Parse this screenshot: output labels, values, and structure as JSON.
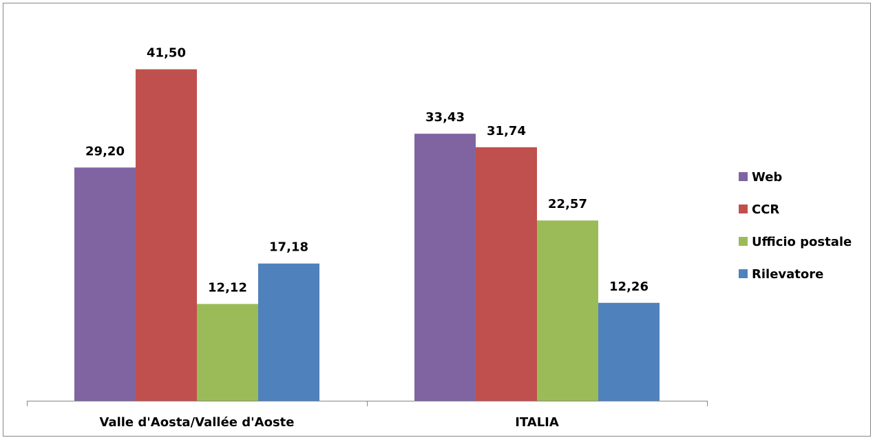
{
  "chart_data": {
    "type": "bar",
    "title": "",
    "xlabel": "",
    "ylabel": "",
    "categories": [
      "Valle d'Aosta/Vallée d'Aoste",
      "ITALIA"
    ],
    "series": [
      {
        "name": "Web",
        "values": [
          29.2,
          33.43
        ],
        "labels": [
          "29,20",
          "33,43"
        ],
        "color": "#8064A2"
      },
      {
        "name": "CCR",
        "values": [
          41.5,
          31.74
        ],
        "labels": [
          "41,50",
          "31,74"
        ],
        "color": "#C0504D"
      },
      {
        "name": "Ufficio postale",
        "values": [
          12.12,
          22.57
        ],
        "labels": [
          "12,12",
          "22,57"
        ],
        "color": "#9BBB59"
      },
      {
        "name": "Rilevatore",
        "values": [
          17.18,
          12.26
        ],
        "labels": [
          "17,18",
          "12,26"
        ],
        "color": "#4F81BD"
      }
    ],
    "ylim": [
      0,
      45
    ],
    "grid": false,
    "legend_position": "right"
  }
}
